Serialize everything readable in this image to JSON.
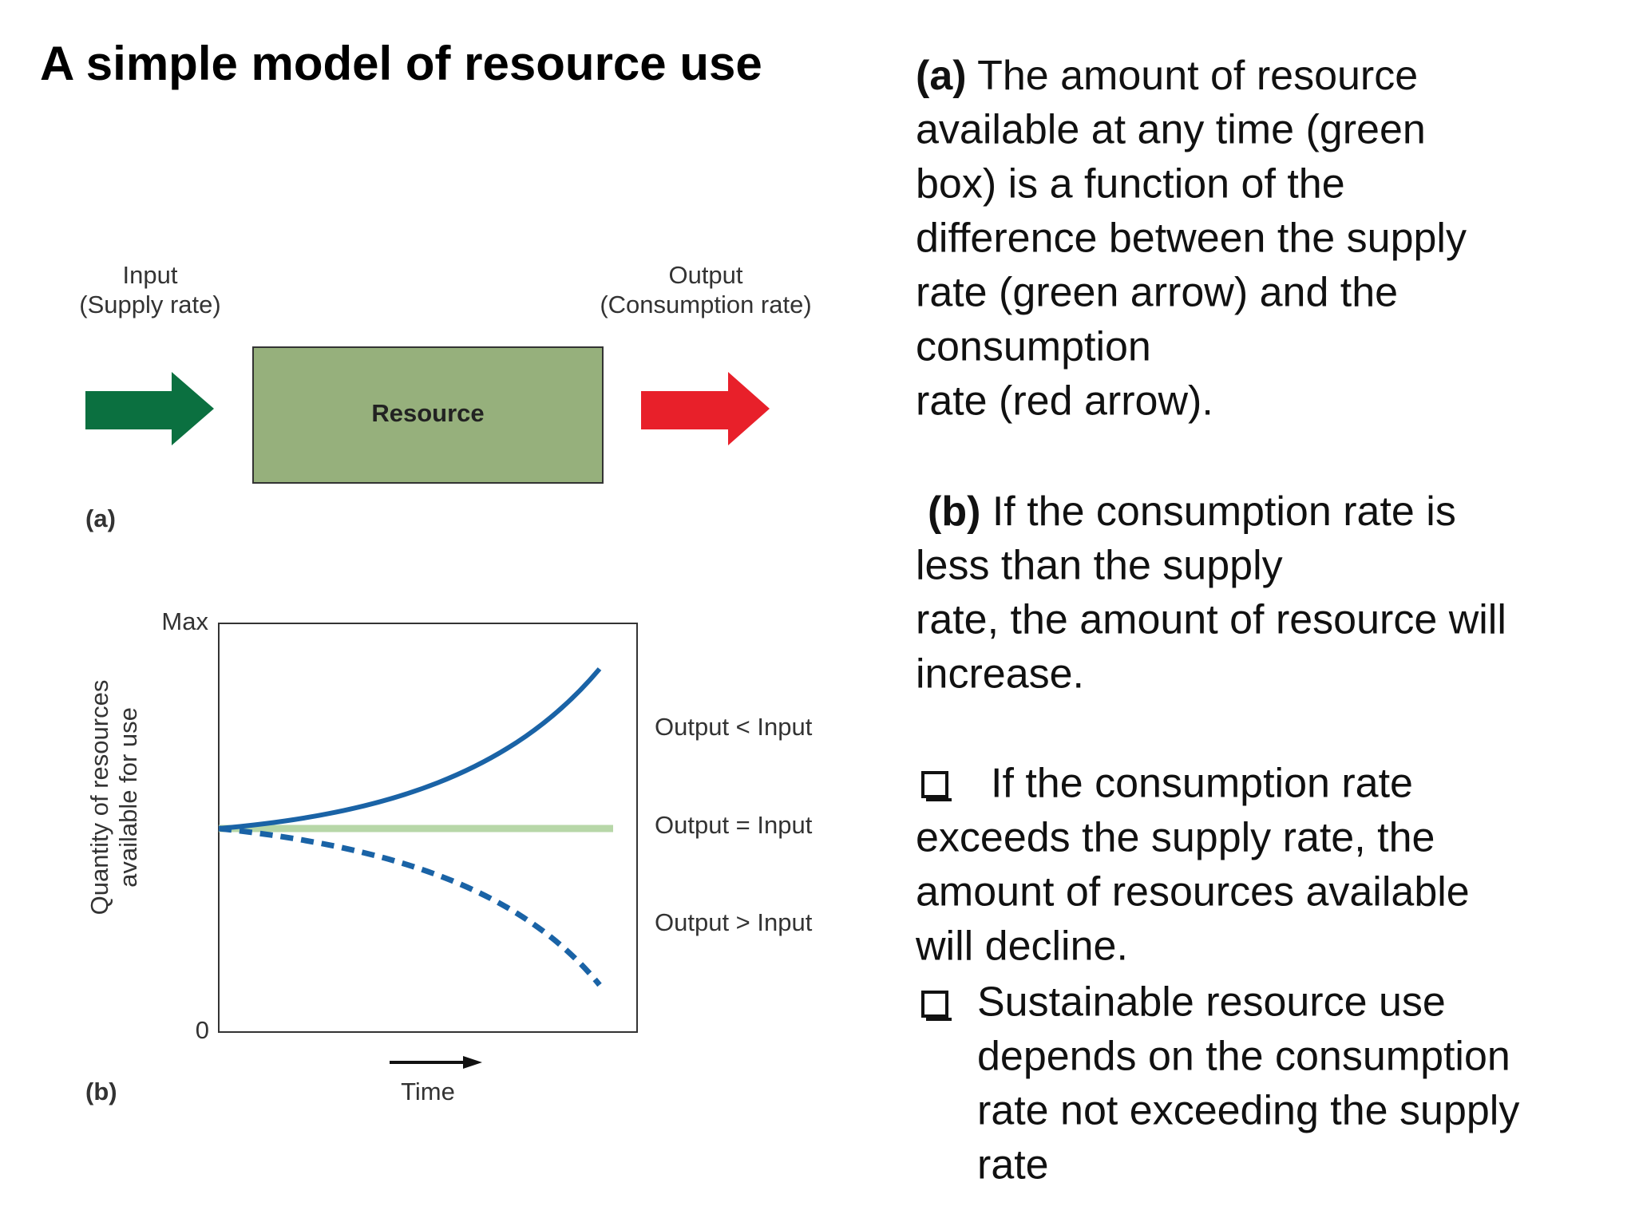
{
  "title": "A simple model of resource use",
  "diagram_a": {
    "input_label": [
      "Input",
      "(Supply rate)"
    ],
    "output_label": [
      "Output",
      "(Consumption rate)"
    ],
    "box_label": "Resource",
    "panel_label": "(a)"
  },
  "graph_b": {
    "y_label": [
      "Quantity of resources",
      "available for use"
    ],
    "y_max": "Max",
    "y_zero": "0",
    "x_label": "Time",
    "curve_labels": [
      "Output < Input",
      "Output = Input",
      "Output > Input"
    ],
    "panel_label": "(b)"
  },
  "text": {
    "para_a": {
      "label": "(a)",
      "lines": [
        " The amount of resource",
        "available at any time (green",
        "box) is a function of the",
        "difference between the supply",
        "rate (green arrow) and the",
        "consumption",
        "rate (red arrow)."
      ]
    },
    "para_b": {
      "label": "(b)",
      "lines": [
        " If the consumption rate is",
        "less than the supply",
        "rate, the amount of resource will",
        "increase."
      ]
    },
    "bullets": [
      {
        "lines": [
          "If the consumption rate",
          "exceeds the supply rate, the",
          "amount of resources available",
          "will decline."
        ]
      },
      {
        "lines": [
          "Sustainable resource use",
          "depends on the consumption",
          "rate not exceeding the supply",
          "rate"
        ]
      }
    ]
  }
}
